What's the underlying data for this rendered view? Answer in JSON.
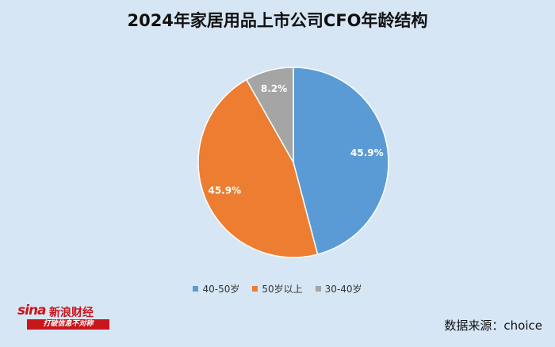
{
  "chart_data": {
    "type": "pie",
    "title": "2024年家居用品上市公司CFO年龄结构",
    "series": [
      {
        "name": "40-50岁",
        "value": 45.9,
        "label": "45.9%",
        "color": "#5b9bd5"
      },
      {
        "name": "50岁以上",
        "value": 45.9,
        "label": "45.9%",
        "color": "#ed7d31"
      },
      {
        "name": "30-40岁",
        "value": 8.2,
        "label": "8.2%",
        "color": "#a5a5a5"
      }
    ],
    "legend_position": "bottom"
  },
  "source": "数据来源：choice",
  "logo": {
    "brand": "sina",
    "name": "新浪财经",
    "slogan": "打破信息不对称"
  }
}
